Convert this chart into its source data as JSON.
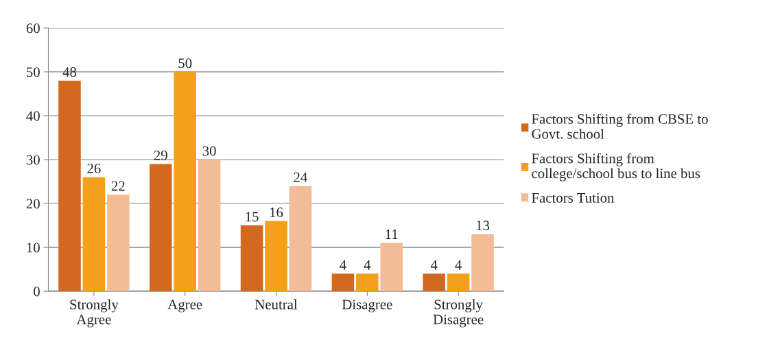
{
  "chart_data": {
    "type": "bar",
    "categories": [
      "Strongly\nAgree",
      "Agree",
      "Neutral",
      "Disagree",
      "Strongly\nDisagree"
    ],
    "series": [
      {
        "name": "Factors Shifting from CBSE to\nGovt. school",
        "color": "#d2691e",
        "values": [
          48,
          29,
          15,
          4,
          4
        ]
      },
      {
        "name": "Factors Shifting from\ncollege/school bus to line bus",
        "color": "#f5a01a",
        "values": [
          26,
          50,
          16,
          4,
          4
        ]
      },
      {
        "name": "Factors Tution",
        "color": "#f2bc96",
        "values": [
          22,
          30,
          24,
          11,
          13
        ]
      }
    ],
    "ylim": [
      0,
      60
    ],
    "yticks": [
      0,
      10,
      20,
      30,
      40,
      50,
      60
    ],
    "grid": "y",
    "legend": "right",
    "data_labels": true
  }
}
